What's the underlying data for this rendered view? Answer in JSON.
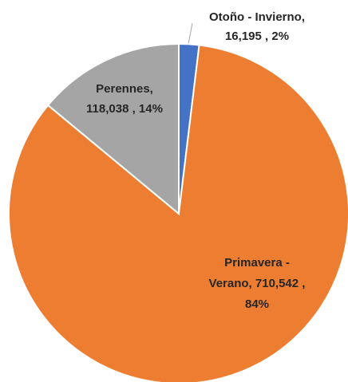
{
  "chart_data": {
    "type": "pie",
    "values": [
      16195,
      710542,
      118038
    ],
    "labels": [
      [
        "Otoño - Invierno,",
        "16,195 , 2%"
      ],
      [
        "Primavera -",
        "Verano,  710,542 ,",
        "84%"
      ],
      [
        "Perennes,",
        "118,038 , 14%"
      ]
    ],
    "colors": [
      "#4472c4",
      "#ed7d31",
      "#a5a5a5"
    ],
    "start_angle": 0,
    "direction": "clockwise"
  }
}
